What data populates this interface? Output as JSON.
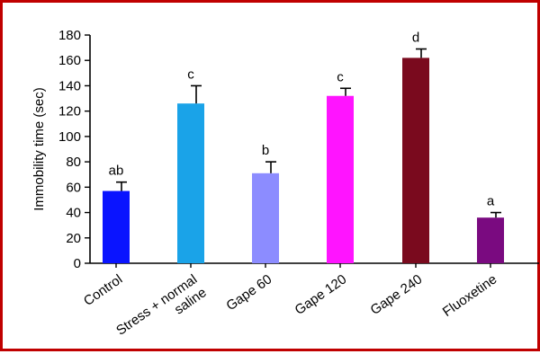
{
  "chart_data": {
    "type": "bar",
    "title": "",
    "xlabel": "",
    "ylabel": "Immobility time (sec)",
    "ylim": [
      0,
      180
    ],
    "yticks": [
      0,
      20,
      40,
      60,
      80,
      100,
      120,
      140,
      160,
      180
    ],
    "grid": false,
    "categories": [
      [
        "Control"
      ],
      [
        "Stress + normal",
        "saline"
      ],
      [
        "Gape 60"
      ],
      [
        "Gape 120"
      ],
      [
        "Gape 240"
      ],
      [
        "Fluoxetine"
      ]
    ],
    "values": [
      57,
      126,
      71,
      132,
      162,
      36
    ],
    "errors": [
      7,
      14,
      9,
      6,
      7,
      4
    ],
    "significance_labels": [
      "ab",
      "c",
      "b",
      "c",
      "d",
      "a"
    ],
    "colors": [
      "#0a14ff",
      "#1aa3e8",
      "#8c8cff",
      "#ff14ff",
      "#7a0a1e",
      "#7a0a80"
    ]
  },
  "colors": {
    "frame_border": "#c00000"
  }
}
